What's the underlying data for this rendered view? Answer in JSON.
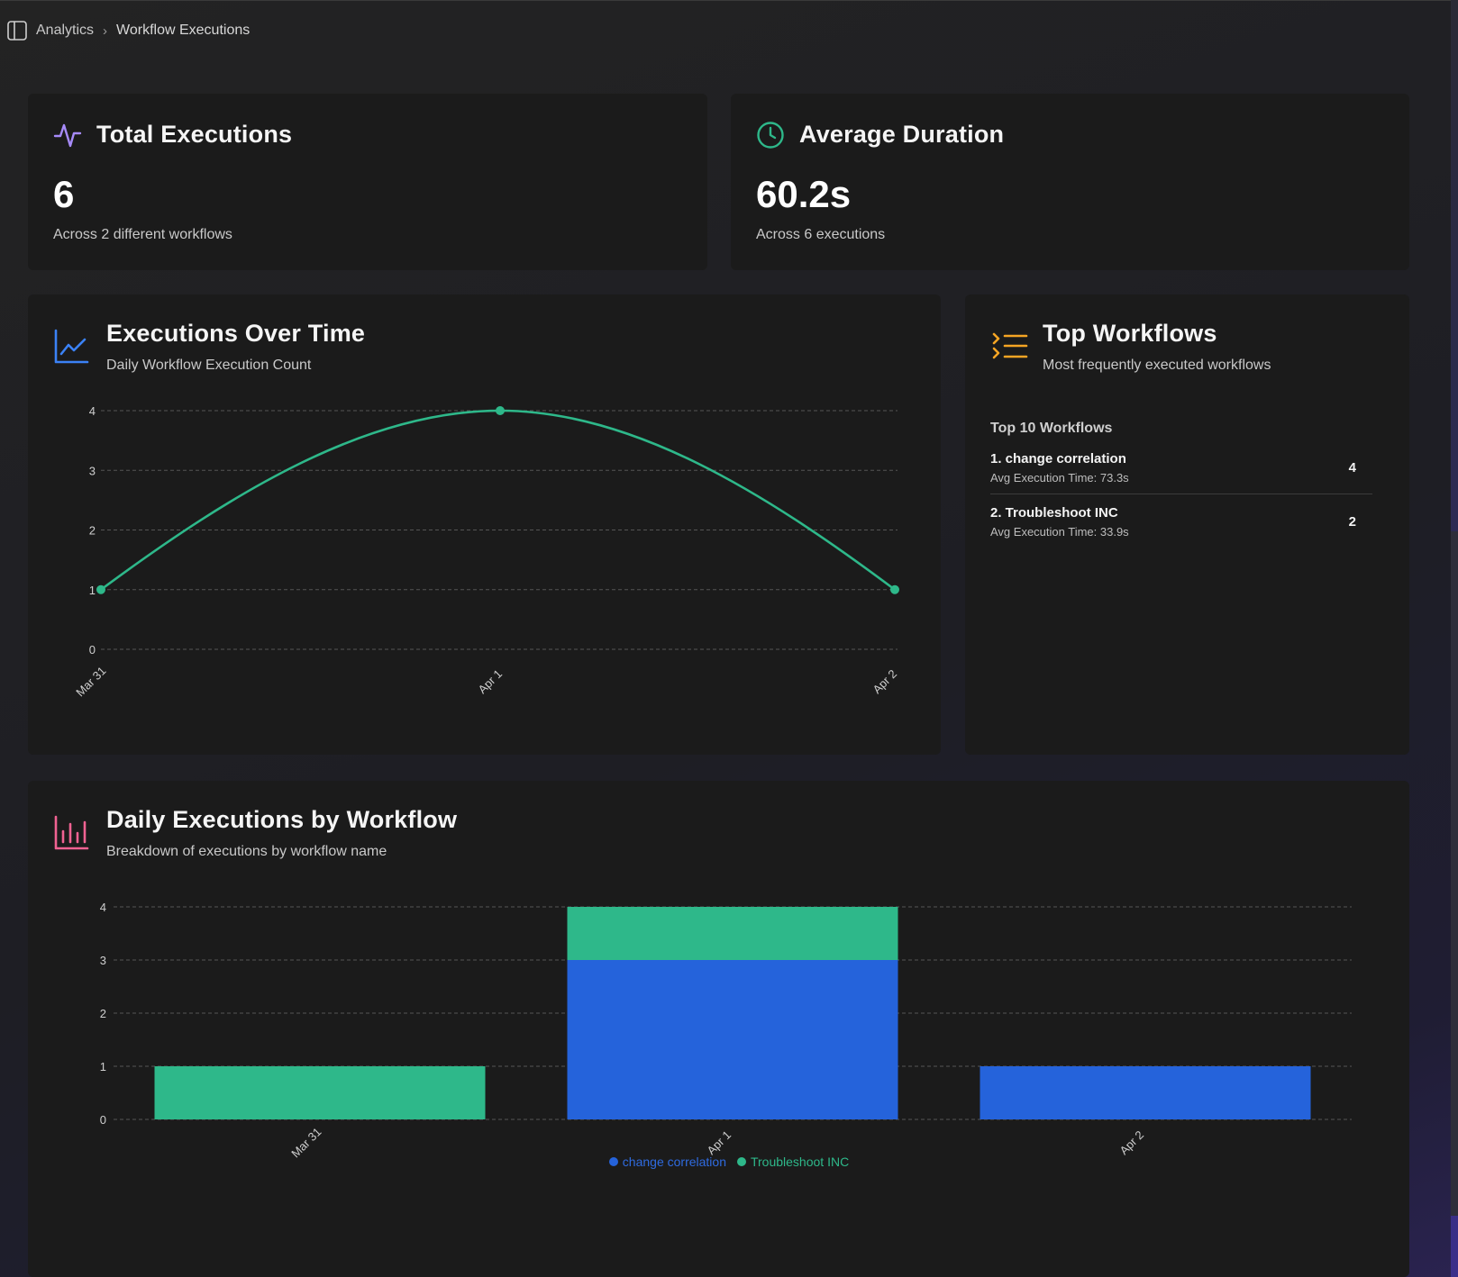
{
  "breadcrumb": {
    "parent": "Analytics",
    "separator": "›",
    "current": "Workflow Executions"
  },
  "colors": {
    "purple": "#a78bfa",
    "green": "#2eb88a",
    "blue": "#2563db",
    "orange": "#f5a524",
    "pink": "#f06292"
  },
  "total_executions": {
    "title": "Total Executions",
    "value": "6",
    "subtitle": "Across 2 different workflows",
    "icon": "activity-icon"
  },
  "average_duration": {
    "title": "Average Duration",
    "value": "60.2s",
    "subtitle": "Across 6 executions",
    "icon": "clock-icon"
  },
  "executions_over_time": {
    "title": "Executions Over Time",
    "subtitle": "Daily Workflow Execution Count",
    "icon": "line-chart-icon"
  },
  "top_workflows": {
    "title": "Top Workflows",
    "subtitle": "Most frequently executed workflows",
    "section_title": "Top 10 Workflows",
    "icon": "list-icon",
    "items": [
      {
        "name": "1. change correlation",
        "meta": "Avg Execution Time: 73.3s",
        "count": "4"
      },
      {
        "name": "2. Troubleshoot INC",
        "meta": "Avg Execution Time: 33.9s",
        "count": "2"
      }
    ]
  },
  "daily_by_workflow": {
    "title": "Daily Executions by Workflow",
    "subtitle": "Breakdown of executions by workflow name",
    "icon": "bar-chart-icon"
  },
  "chart_data": [
    {
      "type": "line",
      "title": "Executions Over Time",
      "categories": [
        "Mar 31",
        "Apr 1",
        "Apr 2"
      ],
      "series": [
        {
          "values": [
            1,
            4,
            1
          ],
          "color": "#2eb88a"
        }
      ],
      "yticks": [
        0,
        1,
        2,
        3,
        4
      ],
      "ylim": [
        0,
        4
      ],
      "grid": true
    },
    {
      "type": "bar",
      "stacked": true,
      "title": "Daily Executions by Workflow",
      "categories": [
        "Mar 31",
        "Apr 1",
        "Apr 2"
      ],
      "series": [
        {
          "name": "change correlation",
          "values": [
            0,
            3,
            1
          ],
          "color": "#2563db"
        },
        {
          "name": "Troubleshoot INC",
          "values": [
            1,
            1,
            0
          ],
          "color": "#2eb88a"
        }
      ],
      "yticks": [
        0,
        1,
        2,
        3,
        4
      ],
      "ylim": [
        0,
        4
      ],
      "grid": true,
      "legend": "bottom"
    }
  ]
}
